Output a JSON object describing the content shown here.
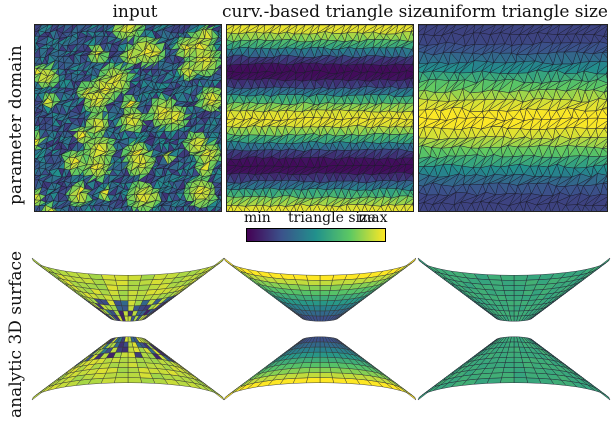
{
  "columns": {
    "input": "input",
    "curv": "curv.-based triangle size",
    "uniform": "uniform triangle size"
  },
  "rows": {
    "param": "parameter domain",
    "surface": "analytic 3D surface"
  },
  "colorbar": {
    "min": "min",
    "title": "triangle size",
    "max": "max",
    "colors": [
      "#440154",
      "#3b528b",
      "#21918c",
      "#5ec962",
      "#fde725"
    ]
  }
}
